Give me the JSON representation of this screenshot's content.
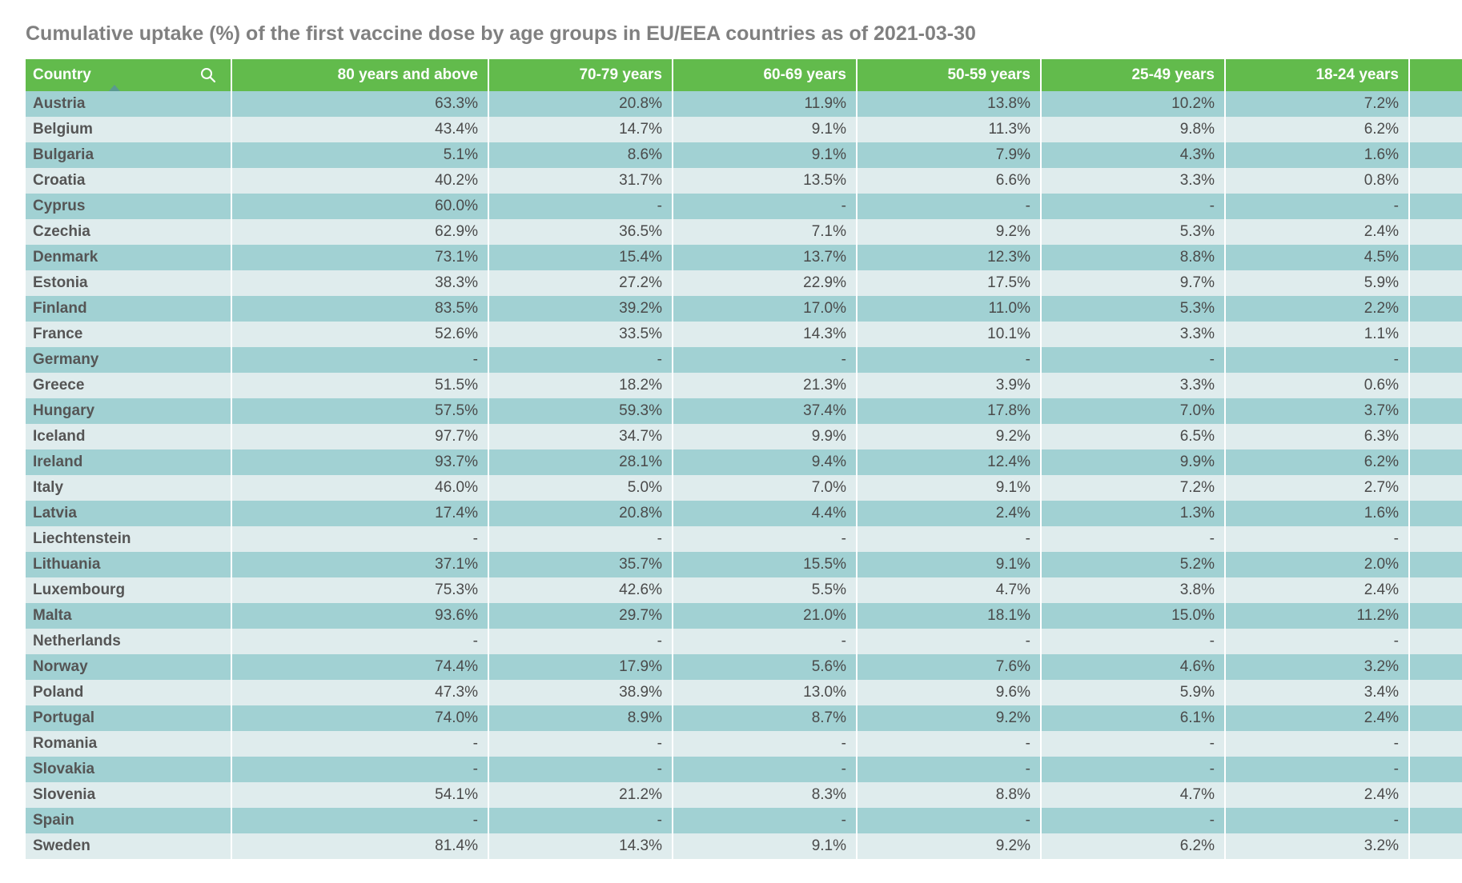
{
  "chart_data": {
    "type": "table",
    "title": "Cumulative uptake (%) of the first vaccine dose by age groups in EU/EEA countries as of 2021-03-30",
    "columns": [
      "Country",
      "80 years and above",
      "70-79 years",
      "60-69 years",
      "50-59 years",
      "25-49 years",
      "18-24 years"
    ],
    "rows": [
      [
        "Austria",
        "63.3%",
        "20.8%",
        "11.9%",
        "13.8%",
        "10.2%",
        "7.2%"
      ],
      [
        "Belgium",
        "43.4%",
        "14.7%",
        "9.1%",
        "11.3%",
        "9.8%",
        "6.2%"
      ],
      [
        "Bulgaria",
        "5.1%",
        "8.6%",
        "9.1%",
        "7.9%",
        "4.3%",
        "1.6%"
      ],
      [
        "Croatia",
        "40.2%",
        "31.7%",
        "13.5%",
        "6.6%",
        "3.3%",
        "0.8%"
      ],
      [
        "Cyprus",
        "60.0%",
        "-",
        "-",
        "-",
        "-",
        "-"
      ],
      [
        "Czechia",
        "62.9%",
        "36.5%",
        "7.1%",
        "9.2%",
        "5.3%",
        "2.4%"
      ],
      [
        "Denmark",
        "73.1%",
        "15.4%",
        "13.7%",
        "12.3%",
        "8.8%",
        "4.5%"
      ],
      [
        "Estonia",
        "38.3%",
        "27.2%",
        "22.9%",
        "17.5%",
        "9.7%",
        "5.9%"
      ],
      [
        "Finland",
        "83.5%",
        "39.2%",
        "17.0%",
        "11.0%",
        "5.3%",
        "2.2%"
      ],
      [
        "France",
        "52.6%",
        "33.5%",
        "14.3%",
        "10.1%",
        "3.3%",
        "1.1%"
      ],
      [
        "Germany",
        "-",
        "-",
        "-",
        "-",
        "-",
        "-"
      ],
      [
        "Greece",
        "51.5%",
        "18.2%",
        "21.3%",
        "3.9%",
        "3.3%",
        "0.6%"
      ],
      [
        "Hungary",
        "57.5%",
        "59.3%",
        "37.4%",
        "17.8%",
        "7.0%",
        "3.7%"
      ],
      [
        "Iceland",
        "97.7%",
        "34.7%",
        "9.9%",
        "9.2%",
        "6.5%",
        "6.3%"
      ],
      [
        "Ireland",
        "93.7%",
        "28.1%",
        "9.4%",
        "12.4%",
        "9.9%",
        "6.2%"
      ],
      [
        "Italy",
        "46.0%",
        "5.0%",
        "7.0%",
        "9.1%",
        "7.2%",
        "2.7%"
      ],
      [
        "Latvia",
        "17.4%",
        "20.8%",
        "4.4%",
        "2.4%",
        "1.3%",
        "1.6%"
      ],
      [
        "Liechtenstein",
        "-",
        "-",
        "-",
        "-",
        "-",
        "-"
      ],
      [
        "Lithuania",
        "37.1%",
        "35.7%",
        "15.5%",
        "9.1%",
        "5.2%",
        "2.0%"
      ],
      [
        "Luxembourg",
        "75.3%",
        "42.6%",
        "5.5%",
        "4.7%",
        "3.8%",
        "2.4%"
      ],
      [
        "Malta",
        "93.6%",
        "29.7%",
        "21.0%",
        "18.1%",
        "15.0%",
        "11.2%"
      ],
      [
        "Netherlands",
        "-",
        "-",
        "-",
        "-",
        "-",
        "-"
      ],
      [
        "Norway",
        "74.4%",
        "17.9%",
        "5.6%",
        "7.6%",
        "4.6%",
        "3.2%"
      ],
      [
        "Poland",
        "47.3%",
        "38.9%",
        "13.0%",
        "9.6%",
        "5.9%",
        "3.4%"
      ],
      [
        "Portugal",
        "74.0%",
        "8.9%",
        "8.7%",
        "9.2%",
        "6.1%",
        "2.4%"
      ],
      [
        "Romania",
        "-",
        "-",
        "-",
        "-",
        "-",
        "-"
      ],
      [
        "Slovakia",
        "-",
        "-",
        "-",
        "-",
        "-",
        "-"
      ],
      [
        "Slovenia",
        "54.1%",
        "21.2%",
        "8.3%",
        "8.8%",
        "4.7%",
        "2.4%"
      ],
      [
        "Spain",
        "-",
        "-",
        "-",
        "-",
        "-",
        "-"
      ],
      [
        "Sweden",
        "81.4%",
        "14.3%",
        "9.1%",
        "9.2%",
        "6.2%",
        "3.2%"
      ]
    ],
    "sort": {
      "column": "Country",
      "direction": "ascending"
    },
    "colors": {
      "header": "#62bb4c",
      "row_odd": "#a1d1d3",
      "row_even": "#dfeced",
      "title": "#808080"
    },
    "icons": {
      "search": "search-icon",
      "sort": "sort-ascending-icon"
    }
  }
}
